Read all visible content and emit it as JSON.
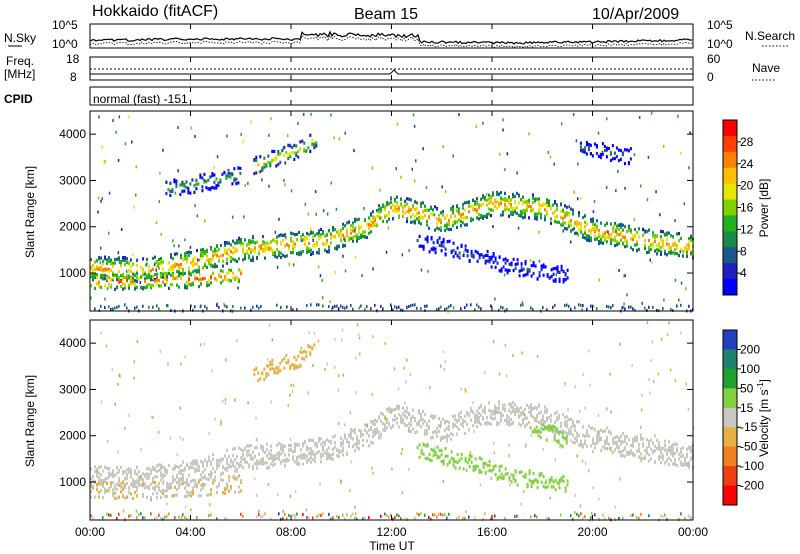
{
  "header": {
    "station": "Hokkaido (fitACF)",
    "beam": "Beam 15",
    "date": "10/Apr/2009"
  },
  "noise_panel": {
    "left_label": "N.Sky",
    "right_label": "N.Search",
    "left_ticks": [
      "10^5",
      "10^0"
    ],
    "right_ticks": [
      "10^5",
      "10^0"
    ]
  },
  "freq_panel": {
    "left_label_line1": "Freq.",
    "left_label_line2": "[MHz]",
    "left_ticks": [
      "18",
      "8"
    ],
    "right_label": "Nave",
    "right_ticks": [
      "60",
      "0"
    ]
  },
  "cpid_panel": {
    "label": "CPID",
    "value": "normal (fast) -151"
  },
  "power_colorbar": {
    "label": "Power [dB]",
    "ticks": [
      "28",
      "24",
      "20",
      "16",
      "12",
      "8",
      "4"
    ],
    "colors": [
      "#ff0000",
      "#ff4000",
      "#ff8000",
      "#ffbf00",
      "#e6e600",
      "#80d000",
      "#20b020",
      "#1a8a4a",
      "#1a5a8a",
      "#2020c0",
      "#0000ff"
    ]
  },
  "velocity_colorbar": {
    "label_main": "Velocity [m s",
    "label_sup": "-1",
    "label_end": "]",
    "ticks": [
      "200",
      "100",
      "50",
      "15",
      "-15",
      "-50",
      "-100",
      "-200"
    ],
    "colors": [
      "#2040c0",
      "#208070",
      "#20a030",
      "#80d040",
      "#c8c8c0",
      "#e8b040",
      "#f08020",
      "#f04010",
      "#ff0000"
    ]
  },
  "chart_data": [
    {
      "type": "heatmap",
      "name": "Power",
      "ylabel": "Slant Range [km]",
      "y_ticks": [
        "4000",
        "3000",
        "2000",
        "1000"
      ],
      "ylim": [
        180,
        4500
      ],
      "x_unit": "hours UT",
      "xlim": [
        0,
        24
      ],
      "layers": [
        {
          "x": [
            0,
            2,
            4,
            6,
            8,
            9.5,
            11,
            12,
            13,
            14,
            16,
            18,
            20,
            22,
            24
          ],
          "y": [
            1100,
            1050,
            1200,
            1500,
            1600,
            1700,
            2000,
            2400,
            2300,
            2100,
            2500,
            2400,
            1900,
            1700,
            1550
          ],
          "level": 24
        },
        {
          "x": [
            0,
            2,
            4,
            5,
            6
          ],
          "y": [
            800,
            820,
            850,
            900,
            950
          ],
          "level": 26
        },
        {
          "x": [
            6.5,
            7.5,
            8.5,
            9
          ],
          "y": [
            3300,
            3500,
            3700,
            3900
          ],
          "level": 20
        },
        {
          "x": [
            13,
            14,
            15,
            16,
            17,
            18,
            19
          ],
          "y": [
            1700,
            1550,
            1400,
            1250,
            1100,
            1000,
            950
          ],
          "level": 8
        },
        {
          "x": [
            3,
            4,
            5,
            6
          ],
          "y": [
            2800,
            2900,
            3000,
            3100
          ],
          "level": 14
        },
        {
          "x": [
            19.5,
            20.5,
            21.5
          ],
          "y": [
            3700,
            3600,
            3500
          ],
          "level": 10
        }
      ]
    },
    {
      "type": "heatmap",
      "name": "Velocity",
      "ylabel": "Slant Range [km]",
      "y_ticks": [
        "4000",
        "3000",
        "2000",
        "1000"
      ],
      "ylim": [
        180,
        4500
      ],
      "x_unit": "hours UT",
      "xlim": [
        0,
        24
      ],
      "layers": [
        {
          "x": [
            0,
            2,
            4,
            6,
            8,
            9.5,
            11,
            12,
            13,
            14,
            16,
            18,
            20,
            22,
            24
          ],
          "y": [
            1100,
            1050,
            1200,
            1500,
            1600,
            1700,
            2000,
            2400,
            2300,
            2100,
            2500,
            2400,
            1900,
            1700,
            1550
          ],
          "level": 0
        },
        {
          "x": [
            0,
            2,
            4,
            5,
            6
          ],
          "y": [
            800,
            820,
            850,
            900,
            950
          ],
          "level": -20
        },
        {
          "x": [
            6.5,
            7.5,
            8.5,
            9
          ],
          "y": [
            3300,
            3500,
            3700,
            3900
          ],
          "level": -40
        },
        {
          "x": [
            13,
            14,
            15,
            16,
            17,
            18,
            19
          ],
          "y": [
            1700,
            1550,
            1400,
            1250,
            1100,
            1000,
            950
          ],
          "level": 60
        },
        {
          "x": [
            17.5,
            18.5,
            19
          ],
          "y": [
            2200,
            2000,
            1850
          ],
          "level": 40
        }
      ]
    }
  ],
  "time_axis": {
    "ticks": [
      "00:00",
      "04:00",
      "08:00",
      "12:00",
      "16:00",
      "20:00",
      "00:00"
    ],
    "label": "Time UT"
  }
}
